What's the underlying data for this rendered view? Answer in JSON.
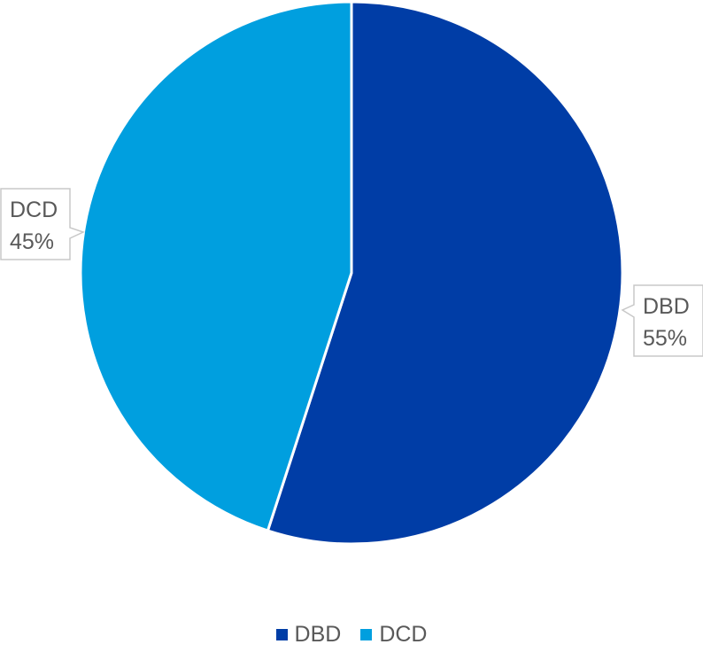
{
  "chart_data": {
    "type": "pie",
    "slices": [
      {
        "label": "DBD",
        "value": 55,
        "value_label": "55%",
        "color": "#003DA6"
      },
      {
        "label": "DCD",
        "value": 45,
        "value_label": "45%",
        "color": "#009FDF"
      }
    ],
    "legend": {
      "position": "bottom",
      "entries": [
        "DBD",
        "DCD"
      ]
    },
    "start_angle": "12 o'clock",
    "direction": "clockwise"
  }
}
